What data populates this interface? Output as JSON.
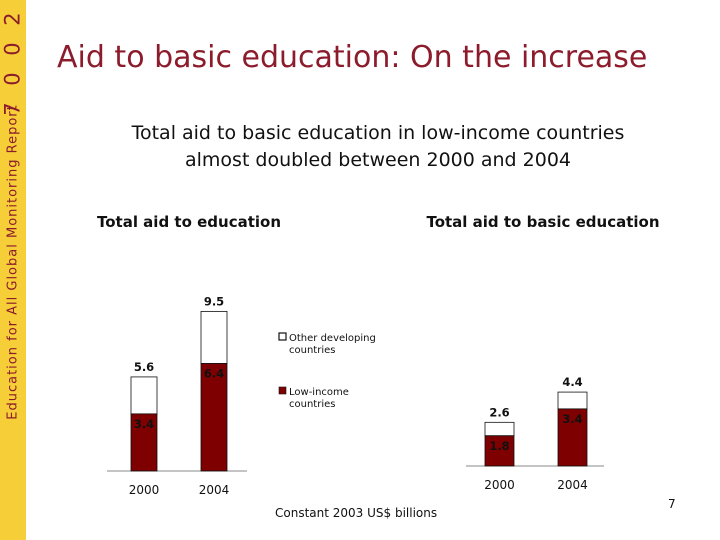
{
  "side_band": {
    "text": "Education for All Global Monitoring Report",
    "year": [
      "2",
      "0",
      "0",
      "7"
    ]
  },
  "slide": {
    "title": "Aid to basic education: On the increase",
    "subtitle_line1": "Total aid to basic education in low-income countries",
    "subtitle_line2": "almost doubled between 2000 and 2004",
    "unit_label": "Constant 2003 US$ billions",
    "page_number": "7"
  },
  "colors": {
    "low_income": "#7f0000",
    "other_developing": "#ffffff",
    "band": "#f6cf38",
    "title": "#8c1c2c"
  },
  "legend": {
    "other_line1": "Other developing",
    "other_line2": "countries",
    "low_line1": "Low-income",
    "low_line2": "countries"
  },
  "chart_data": [
    {
      "type": "bar",
      "stacked": true,
      "title": "Total aid to education",
      "categories": [
        "2000",
        "2004"
      ],
      "series": [
        {
          "name": "Low-income countries",
          "values": [
            3.4,
            6.4
          ]
        },
        {
          "name": "Other developing countries",
          "values": [
            2.2,
            3.1
          ]
        }
      ],
      "totals": [
        5.6,
        9.5
      ],
      "ylim": [
        0,
        10
      ],
      "legend_position": "right"
    },
    {
      "type": "bar",
      "stacked": true,
      "title": "Total aid to basic education",
      "categories": [
        "2000",
        "2004"
      ],
      "series": [
        {
          "name": "Low-income countries",
          "values": [
            1.8,
            3.4
          ]
        },
        {
          "name": "Other developing countries",
          "values": [
            0.8,
            1.0
          ]
        }
      ],
      "totals": [
        2.6,
        4.4
      ],
      "ylim": [
        0,
        10
      ]
    }
  ]
}
